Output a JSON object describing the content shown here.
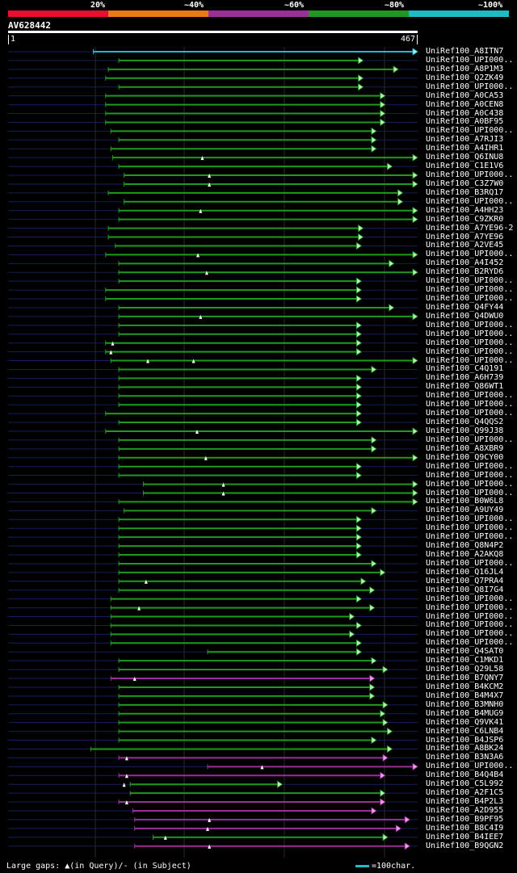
{
  "legend": {
    "labels": [
      "20%",
      "~40%",
      "~60%",
      "~80%",
      "~100%"
    ],
    "colors": [
      "#e8102e",
      "#e87a17",
      "#9c2e9c",
      "#1f9a1f",
      "#1fb9c8"
    ]
  },
  "query": {
    "name": "AV628442",
    "start_label": "1",
    "end_label": "467",
    "length": 467
  },
  "hits": [
    {
      "name": "UniRef100_A8ITN7",
      "s": 98,
      "e": 467,
      "c": "cyan"
    },
    {
      "name": "UniRef100_UPI000..",
      "s": 127,
      "e": 405,
      "c": "green"
    },
    {
      "name": "UniRef100_A8P1M3",
      "s": 115,
      "e": 445,
      "c": "green"
    },
    {
      "name": "UniRef100_Q2ZK49",
      "s": 112,
      "e": 405,
      "c": "green"
    },
    {
      "name": "UniRef100_UPI000..",
      "s": 127,
      "e": 405,
      "c": "green"
    },
    {
      "name": "UniRef100_A0CA53",
      "s": 112,
      "e": 430,
      "c": "green"
    },
    {
      "name": "UniRef100_A0CEN8",
      "s": 112,
      "e": 430,
      "c": "green"
    },
    {
      "name": "UniRef100_A0C438",
      "s": 112,
      "e": 430,
      "c": "green"
    },
    {
      "name": "UniRef100_A0BF95",
      "s": 112,
      "e": 430,
      "c": "green"
    },
    {
      "name": "UniRef100_UPI000..",
      "s": 118,
      "e": 420,
      "c": "green"
    },
    {
      "name": "UniRef100_A7RJI3",
      "s": 127,
      "e": 420,
      "c": "green"
    },
    {
      "name": "UniRef100_A4IHR1",
      "s": 118,
      "e": 420,
      "c": "green"
    },
    {
      "name": "UniRef100_Q6INU8",
      "s": 120,
      "e": 467,
      "c": "green",
      "m": [
        222
      ]
    },
    {
      "name": "UniRef100_C1E1V6",
      "s": 127,
      "e": 438,
      "c": "green"
    },
    {
      "name": "UniRef100_UPI000..",
      "s": 133,
      "e": 467,
      "c": "green",
      "m": [
        230
      ]
    },
    {
      "name": "UniRef100_C3Z7W0",
      "s": 133,
      "e": 467,
      "c": "green",
      "m": [
        230
      ]
    },
    {
      "name": "UniRef100_B3RQ17",
      "s": 115,
      "e": 450,
      "c": "green"
    },
    {
      "name": "UniRef100_UPI000..",
      "s": 133,
      "e": 450,
      "c": "green"
    },
    {
      "name": "UniRef100_A4HH23",
      "s": 127,
      "e": 467,
      "c": "green",
      "m": [
        220
      ]
    },
    {
      "name": "UniRef100_C9ZKR0",
      "s": 127,
      "e": 467,
      "c": "green"
    },
    {
      "name": "UniRef100_A7YE96-2",
      "s": 115,
      "e": 405,
      "c": "green"
    },
    {
      "name": "UniRef100_A7YE96",
      "s": 115,
      "e": 405,
      "c": "green"
    },
    {
      "name": "UniRef100_A2VE45",
      "s": 123,
      "e": 403,
      "c": "green"
    },
    {
      "name": "UniRef100_UPI000..",
      "s": 112,
      "e": 467,
      "c": "green",
      "m": [
        217
      ]
    },
    {
      "name": "UniRef100_A4I452",
      "s": 127,
      "e": 440,
      "c": "green"
    },
    {
      "name": "UniRef100_B2RYD6",
      "s": 127,
      "e": 467,
      "c": "green",
      "m": [
        227
      ]
    },
    {
      "name": "UniRef100_UPI000..",
      "s": 127,
      "e": 403,
      "c": "green"
    },
    {
      "name": "UniRef100_UPI000..",
      "s": 112,
      "e": 403,
      "c": "green"
    },
    {
      "name": "UniRef100_UPI000..",
      "s": 112,
      "e": 403,
      "c": "green"
    },
    {
      "name": "UniRef100_Q4FY44",
      "s": 127,
      "e": 440,
      "c": "green"
    },
    {
      "name": "UniRef100_Q4DWU0",
      "s": 127,
      "e": 467,
      "c": "green",
      "m": [
        220
      ]
    },
    {
      "name": "UniRef100_UPI000..",
      "s": 127,
      "e": 403,
      "c": "green"
    },
    {
      "name": "UniRef100_UPI000..",
      "s": 127,
      "e": 403,
      "c": "green"
    },
    {
      "name": "UniRef100_UPI000..",
      "s": 112,
      "e": 403,
      "c": "green",
      "m": [
        120
      ]
    },
    {
      "name": "UniRef100_UPI000..",
      "s": 112,
      "e": 403,
      "c": "green",
      "m": [
        118
      ]
    },
    {
      "name": "UniRef100_UPI000..",
      "s": 118,
      "e": 467,
      "c": "green",
      "m": [
        160,
        212
      ]
    },
    {
      "name": "UniRef100_C4Q191",
      "s": 127,
      "e": 420,
      "c": "green"
    },
    {
      "name": "UniRef100_A6H739",
      "s": 127,
      "e": 403,
      "c": "green"
    },
    {
      "name": "UniRef100_Q86WT1",
      "s": 127,
      "e": 403,
      "c": "green"
    },
    {
      "name": "UniRef100_UPI000..",
      "s": 127,
      "e": 403,
      "c": "green"
    },
    {
      "name": "UniRef100_UPI000..",
      "s": 127,
      "e": 403,
      "c": "green"
    },
    {
      "name": "UniRef100_UPI000..",
      "s": 112,
      "e": 403,
      "c": "green"
    },
    {
      "name": "UniRef100_Q4QQS2",
      "s": 127,
      "e": 403,
      "c": "green"
    },
    {
      "name": "UniRef100_Q99J38",
      "s": 112,
      "e": 467,
      "c": "green",
      "m": [
        216
      ]
    },
    {
      "name": "UniRef100_UPI000..",
      "s": 127,
      "e": 420,
      "c": "green"
    },
    {
      "name": "UniRef100_A8XBR9",
      "s": 127,
      "e": 420,
      "c": "green"
    },
    {
      "name": "UniRef100_Q9CY00",
      "s": 127,
      "e": 467,
      "c": "green",
      "m": [
        226
      ]
    },
    {
      "name": "UniRef100_UPI000..",
      "s": 127,
      "e": 403,
      "c": "green"
    },
    {
      "name": "UniRef100_UPI000..",
      "s": 127,
      "e": 403,
      "c": "green"
    },
    {
      "name": "UniRef100_UPI000..",
      "s": 155,
      "e": 467,
      "c": "green",
      "m": [
        246
      ]
    },
    {
      "name": "UniRef100_UPI000..",
      "s": 155,
      "e": 467,
      "c": "green",
      "m": [
        246
      ]
    },
    {
      "name": "UniRef100_B0W6L8",
      "s": 127,
      "e": 467,
      "c": "green"
    },
    {
      "name": "UniRef100_A9UY49",
      "s": 133,
      "e": 420,
      "c": "green"
    },
    {
      "name": "UniRef100_UPI000..",
      "s": 127,
      "e": 403,
      "c": "green"
    },
    {
      "name": "UniRef100_UPI000..",
      "s": 127,
      "e": 403,
      "c": "green"
    },
    {
      "name": "UniRef100_UPI000..",
      "s": 127,
      "e": 403,
      "c": "green"
    },
    {
      "name": "UniRef100_Q8N4P2",
      "s": 127,
      "e": 403,
      "c": "green"
    },
    {
      "name": "UniRef100_A2AKQ8",
      "s": 127,
      "e": 403,
      "c": "green"
    },
    {
      "name": "UniRef100_UPI000..",
      "s": 127,
      "e": 420,
      "c": "green"
    },
    {
      "name": "UniRef100_Q16JL4",
      "s": 127,
      "e": 430,
      "c": "green"
    },
    {
      "name": "UniRef100_Q7PRA4",
      "s": 127,
      "e": 408,
      "c": "green",
      "m": [
        158
      ]
    },
    {
      "name": "UniRef100_Q8I7G4",
      "s": 127,
      "e": 418,
      "c": "green"
    },
    {
      "name": "UniRef100_UPI000..",
      "s": 118,
      "e": 403,
      "c": "green"
    },
    {
      "name": "UniRef100_UPI000..",
      "s": 118,
      "e": 418,
      "c": "green",
      "m": [
        150
      ]
    },
    {
      "name": "UniRef100_UPI000..",
      "s": 118,
      "e": 395,
      "c": "green"
    },
    {
      "name": "UniRef100_UPI000..",
      "s": 118,
      "e": 403,
      "c": "green"
    },
    {
      "name": "UniRef100_UPI000..",
      "s": 118,
      "e": 395,
      "c": "green"
    },
    {
      "name": "UniRef100_UPI000..",
      "s": 118,
      "e": 403,
      "c": "green"
    },
    {
      "name": "UniRef100_Q4SAT0",
      "s": 228,
      "e": 403,
      "c": "green"
    },
    {
      "name": "UniRef100_C1MKD1",
      "s": 127,
      "e": 420,
      "c": "green"
    },
    {
      "name": "UniRef100_Q29L58",
      "s": 127,
      "e": 433,
      "c": "green"
    },
    {
      "name": "UniRef100_B7QNY7",
      "s": 118,
      "e": 418,
      "c": "purple",
      "m": [
        145
      ]
    },
    {
      "name": "UniRef100_B4KCM2",
      "s": 127,
      "e": 418,
      "c": "green"
    },
    {
      "name": "UniRef100_B4M4X7",
      "s": 127,
      "e": 418,
      "c": "green"
    },
    {
      "name": "UniRef100_B3MNH0",
      "s": 127,
      "e": 433,
      "c": "green"
    },
    {
      "name": "UniRef100_B4MUG9",
      "s": 127,
      "e": 430,
      "c": "green"
    },
    {
      "name": "UniRef100_Q9VK41",
      "s": 127,
      "e": 433,
      "c": "green"
    },
    {
      "name": "UniRef100_C6LNB4",
      "s": 127,
      "e": 438,
      "c": "green"
    },
    {
      "name": "UniRef100_B4JSP6",
      "s": 127,
      "e": 420,
      "c": "green"
    },
    {
      "name": "UniRef100_A8BK24",
      "s": 95,
      "e": 438,
      "c": "green"
    },
    {
      "name": "UniRef100_B3N3A6",
      "s": 127,
      "e": 433,
      "c": "purple",
      "m": [
        136
      ]
    },
    {
      "name": "UniRef100_UPI000..",
      "s": 228,
      "e": 467,
      "c": "purple",
      "m": [
        290
      ]
    },
    {
      "name": "UniRef100_B4Q4B4",
      "s": 127,
      "e": 430,
      "c": "purple",
      "m": [
        136
      ]
    },
    {
      "name": "UniRef100_C5L992",
      "s": 140,
      "e": 313,
      "c": "green",
      "m": [
        133
      ]
    },
    {
      "name": "UniRef100_A2F1C5",
      "s": 140,
      "e": 430,
      "c": "green"
    },
    {
      "name": "UniRef100_B4P2L3",
      "s": 127,
      "e": 430,
      "c": "purple",
      "m": [
        136
      ]
    },
    {
      "name": "UniRef100_A2D955",
      "s": 143,
      "e": 420,
      "c": "purple"
    },
    {
      "name": "UniRef100_B9PF95",
      "s": 145,
      "e": 458,
      "c": "purple",
      "m": [
        230
      ]
    },
    {
      "name": "UniRef100_B8C4I9",
      "s": 145,
      "e": 448,
      "c": "purple",
      "m": [
        228
      ]
    },
    {
      "name": "UniRef100_B4IEE7",
      "s": 166,
      "e": 433,
      "c": "green",
      "m": [
        180
      ]
    },
    {
      "name": "UniRef100_B9QGN2",
      "s": 145,
      "e": 458,
      "c": "purple",
      "m": [
        230
      ]
    }
  ],
  "footer": {
    "gaps_text": "Large gaps: ▲(in Query)/- (in Subject)",
    "scale_text": "=100char."
  }
}
